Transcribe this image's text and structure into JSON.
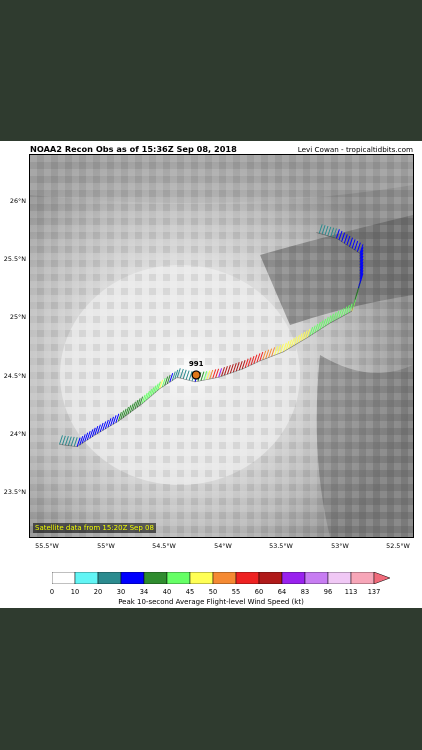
{
  "header": {
    "title": "NOAA2 Recon Obs as of 15:36Z Sep 08, 2018",
    "credit": "Levi Cowan - tropicaltidbits.com"
  },
  "map": {
    "satellite_label": "Satellite data from 15:20Z Sep 08",
    "pressure_label": "991",
    "lat_ticks": [
      "26°N",
      "25.5°N",
      "25°N",
      "24.5°N",
      "24°N",
      "23.5°N"
    ],
    "lon_ticks": [
      "55.5°W",
      "55°W",
      "54.5°W",
      "54°W",
      "53.5°W",
      "53°W",
      "52.5°W"
    ],
    "lat_range": [
      23.1,
      26.4
    ],
    "lon_range": [
      -55.65,
      -52.4
    ],
    "center": {
      "lat": 24.5,
      "lon": -54.24
    },
    "track": [
      {
        "lat": 23.9,
        "lon": -55.4,
        "kt": 20
      },
      {
        "lat": 23.88,
        "lon": -55.25,
        "kt": 30
      },
      {
        "lat": 23.98,
        "lon": -55.1,
        "kt": 30
      },
      {
        "lat": 24.1,
        "lon": -54.9,
        "kt": 34
      },
      {
        "lat": 24.25,
        "lon": -54.7,
        "kt": 40
      },
      {
        "lat": 24.38,
        "lon": -54.55,
        "kt": 45
      },
      {
        "lat": 24.48,
        "lon": -54.4,
        "kt": 20
      },
      {
        "lat": 24.44,
        "lon": -54.25,
        "kt": 30
      },
      {
        "lat": 24.48,
        "lon": -54.05,
        "kt": 64
      },
      {
        "lat": 24.55,
        "lon": -53.85,
        "kt": 60
      },
      {
        "lat": 24.62,
        "lon": -53.7,
        "kt": 55
      },
      {
        "lat": 24.7,
        "lon": -53.5,
        "kt": 45
      },
      {
        "lat": 24.82,
        "lon": -53.3,
        "kt": 45
      },
      {
        "lat": 24.95,
        "lon": -53.1,
        "kt": 40
      },
      {
        "lat": 25.05,
        "lon": -52.92,
        "kt": 45
      },
      {
        "lat": 25.3,
        "lon": -52.85,
        "kt": 30
      },
      {
        "lat": 25.55,
        "lon": -52.85,
        "kt": 30
      },
      {
        "lat": 25.68,
        "lon": -53.05,
        "kt": 30
      },
      {
        "lat": 25.73,
        "lon": -53.22,
        "kt": 20
      }
    ]
  },
  "colorbar": {
    "title": "Peak 10-second Average Flight-level Wind Speed (kt)",
    "ticks": [
      "0",
      "10",
      "20",
      "30",
      "34",
      "40",
      "45",
      "50",
      "55",
      "60",
      "64",
      "83",
      "96",
      "113",
      "137"
    ],
    "colors": [
      "#ffffff",
      "#62f5f5",
      "#2b8b8f",
      "#0000ff",
      "#2f8c2f",
      "#66ff66",
      "#ffff55",
      "#f58a33",
      "#ee2222",
      "#b01a1a",
      "#9922ee",
      "#c77df2",
      "#f0c8f5",
      "#f7a6b8"
    ]
  }
}
